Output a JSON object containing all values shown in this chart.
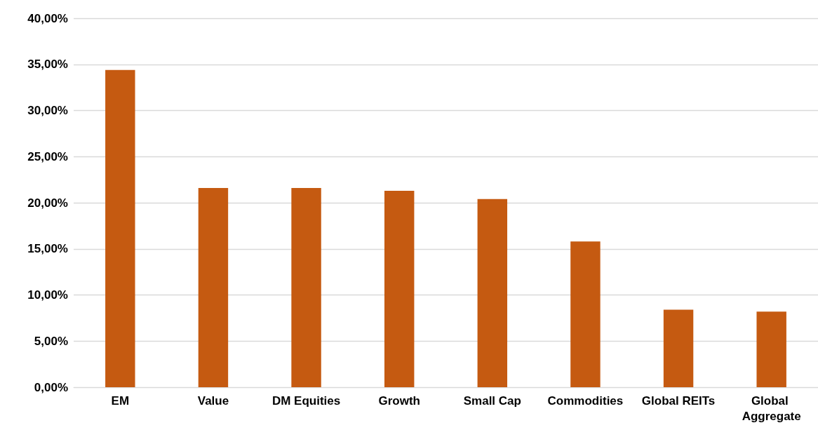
{
  "chart_data": {
    "type": "bar",
    "categories": [
      "EM",
      "Value",
      "DM Equities",
      "Growth",
      "Small Cap",
      "Commodities",
      "Global REITs",
      "Global Aggregate"
    ],
    "values": [
      34.4,
      21.6,
      21.6,
      21.3,
      20.4,
      15.8,
      8.4,
      8.2
    ],
    "color": "#c55a11",
    "ylim": [
      0,
      40
    ],
    "yticks": [
      {
        "value": 0,
        "label": "0,00%"
      },
      {
        "value": 5,
        "label": "5,00%"
      },
      {
        "value": 10,
        "label": "10,00%"
      },
      {
        "value": 15,
        "label": "15,00%"
      },
      {
        "value": 20,
        "label": "20,00%"
      },
      {
        "value": 25,
        "label": "25,00%"
      },
      {
        "value": 30,
        "label": "30,00%"
      },
      {
        "value": 35,
        "label": "35,00%"
      },
      {
        "value": 40,
        "label": "40,00%"
      }
    ],
    "grid": "y"
  }
}
